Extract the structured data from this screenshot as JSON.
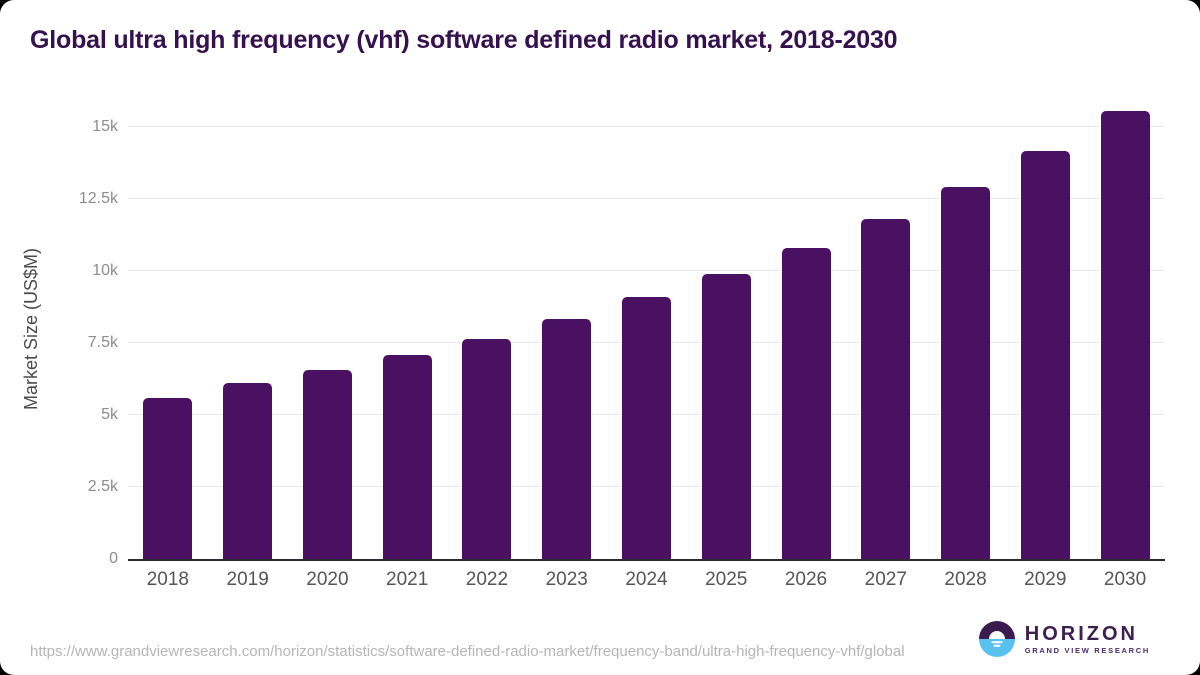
{
  "chart": {
    "title": "Global ultra high frequency (vhf) software defined radio market, 2018-2030",
    "y_axis_label": "Market Size (US$M)"
  },
  "chart_data": {
    "type": "bar",
    "title": "Global ultra high frequency (vhf) software defined radio market, 2018-2030",
    "categories": [
      "2018",
      "2019",
      "2020",
      "2021",
      "2022",
      "2023",
      "2024",
      "2025",
      "2026",
      "2027",
      "2028",
      "2029",
      "2030"
    ],
    "values": [
      5600,
      6100,
      6550,
      7100,
      7650,
      8350,
      9100,
      9900,
      10800,
      11800,
      12900,
      14150,
      15550
    ],
    "xlabel": "",
    "ylabel": "Market Size (US$M)",
    "ylim": [
      0,
      16000
    ],
    "yticks": [
      {
        "value": 0,
        "label": "0"
      },
      {
        "value": 2500,
        "label": "2.5k"
      },
      {
        "value": 5000,
        "label": "5k"
      },
      {
        "value": 7500,
        "label": "7.5k"
      },
      {
        "value": 10000,
        "label": "10k"
      },
      {
        "value": 12500,
        "label": "12.5k"
      },
      {
        "value": 15000,
        "label": "15k"
      }
    ],
    "grid": true,
    "legend_position": "none",
    "bar_color": "#4a1061"
  },
  "footer": {
    "source_url": "https://www.grandviewresearch.com/horizon/statistics/software-defined-radio-market/frequency-band/ultra-high-frequency-vhf/global",
    "logo": {
      "name": "HORIZON",
      "subtitle": "GRAND VIEW RESEARCH"
    }
  },
  "colors": {
    "bar": "#4a1061",
    "title_text": "#35114e",
    "gridline": "#e9e9e9",
    "axis_line": "#2b2b33",
    "logo_purple": "#3b1b4f",
    "logo_blue": "#58c1ee"
  }
}
